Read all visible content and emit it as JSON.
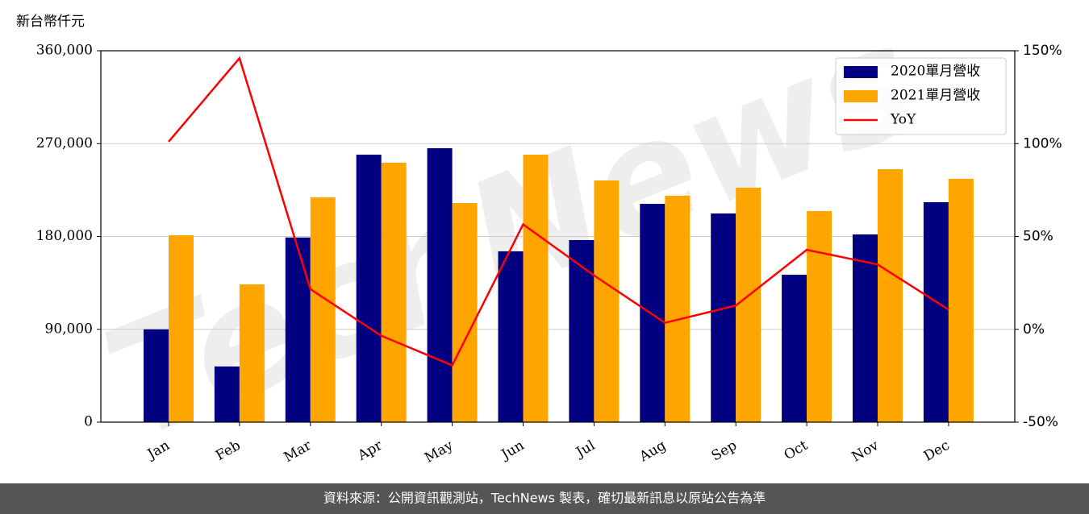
{
  "chart_data": {
    "type": "bar_line",
    "y_label": "新台幣仟元",
    "watermark": "TechNews",
    "footer": "資料來源：公開資訊觀測站，TechNews 製表，確切最新訊息以原站公告為準",
    "categories": [
      "Jan",
      "Feb",
      "Mar",
      "Apr",
      "May",
      "Jun",
      "Jul",
      "Aug",
      "Sep",
      "Oct",
      "Nov",
      "Dec"
    ],
    "series": [
      {
        "name": "2020單月營收",
        "type": "bar",
        "color": "#000080",
        "values": [
          90000,
          54000,
          179000,
          259300,
          265500,
          165600,
          176500,
          211600,
          202300,
          142900,
          182000,
          213200
        ]
      },
      {
        "name": "2021單月營收",
        "type": "bar",
        "color": "#ffa500",
        "values": [
          181200,
          133500,
          217900,
          251500,
          212400,
          259300,
          234300,
          219500,
          227300,
          204600,
          245200,
          235900
        ]
      },
      {
        "name": "YoY",
        "type": "line",
        "axis": "y2",
        "color": "#ff0000",
        "values": [
          101,
          146,
          21.6,
          -3.5,
          -19.4,
          56.5,
          29,
          3.5,
          12.8,
          42.8,
          34.9,
          10.6
        ]
      }
    ],
    "ylim": [
      0,
      360000
    ],
    "yticks": [
      0,
      {
        "value": 90000,
        "label": "90,000"
      },
      {
        "value": 180000,
        "label": "180,000"
      },
      {
        "value": 270000,
        "label": "270,000"
      },
      {
        "value": 360000,
        "label": "360,000"
      }
    ],
    "y2lim": [
      -50,
      150
    ],
    "y2ticks": [
      {
        "value": -50,
        "label": "-50%"
      },
      {
        "value": 0,
        "label": "0%"
      },
      {
        "value": 50,
        "label": "50%"
      },
      {
        "value": 100,
        "label": "100%"
      },
      {
        "value": 150,
        "label": "150%"
      }
    ],
    "grid": true,
    "legend": "upper right"
  }
}
